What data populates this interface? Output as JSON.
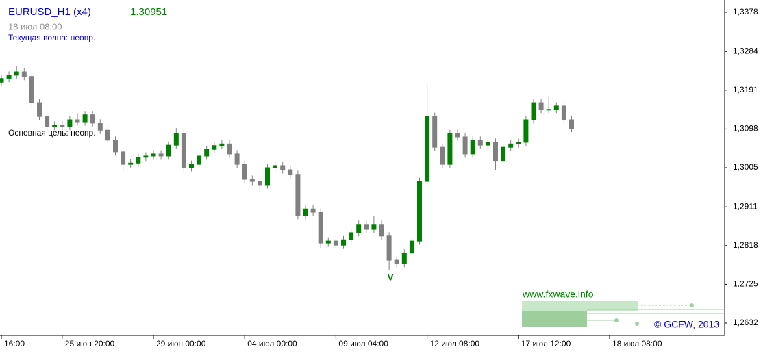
{
  "chart_data": {
    "type": "candlestick",
    "title": "EURUSD_H1 (x4)",
    "last_price": 1.30951,
    "subtitle": "18 июл 08:00",
    "wave_text": "Текущая волна: неопр.",
    "target_text": "Основная цель: неопр.",
    "wave_mark": "V",
    "site": "www.fxwave.info",
    "copyright": "© GCFW, 2013",
    "up_color": "#008000",
    "down_color": "#808080",
    "categories": [
      "16:00",
      null,
      null,
      null,
      null,
      null,
      null,
      null,
      "25 июн 20:00",
      null,
      null,
      null,
      null,
      null,
      null,
      null,
      null,
      null,
      null,
      null,
      "29 июн 00:00",
      null,
      null,
      null,
      null,
      null,
      null,
      null,
      null,
      null,
      null,
      null,
      "04 июл 00:00",
      null,
      null,
      null,
      null,
      null,
      null,
      null,
      null,
      null,
      null,
      null,
      "09 июл 04:00",
      null,
      null,
      null,
      null,
      null,
      null,
      null,
      null,
      null,
      null,
      null,
      "12 июл 08:00",
      null,
      null,
      null,
      null,
      null,
      null,
      null,
      null,
      null,
      null,
      null,
      "17 июл 12:00",
      null,
      null,
      null,
      null,
      null,
      null,
      null,
      null,
      null,
      null,
      null,
      "18 июл 08:00"
    ],
    "open": [
      1.321,
      1.3219,
      1.3227,
      1.3235,
      1.3224,
      1.3161,
      1.3128,
      1.3104,
      1.3107,
      1.3104,
      1.312,
      1.3115,
      1.3132,
      1.3112,
      1.3095,
      1.3071,
      1.3043,
      1.3013,
      1.3016,
      1.303,
      1.3033,
      1.3038,
      1.3033,
      1.3059,
      1.3087,
      1.3005,
      1.3013,
      1.3033,
      1.3049,
      1.3058,
      1.3062,
      1.3038,
      1.3013,
      1.2977,
      1.2972,
      1.2964,
      1.3005,
      1.301,
      1.3,
      1.2989,
      1.289,
      1.2906,
      1.2898,
      1.2824,
      1.2829,
      1.2819,
      1.2832,
      1.2849,
      1.2869,
      1.2857,
      1.2869,
      1.2841,
      1.2783,
      1.2775,
      1.28,
      1.2829,
      1.2972,
      1.3128,
      1.3054,
      1.3013,
      1.3087,
      1.3079,
      1.3038,
      1.3071,
      1.3059,
      1.3066,
      1.3022,
      1.3054,
      1.3062,
      1.3066,
      1.312,
      1.3161,
      1.3145,
      1.3145,
      1.3153,
      1.312,
      null,
      null,
      null,
      null,
      null
    ],
    "high": [
      1.3228,
      1.3236,
      1.325,
      1.3244,
      1.3233,
      1.317,
      1.3137,
      1.3116,
      1.3116,
      1.3129,
      1.3136,
      1.3141,
      1.3141,
      1.3121,
      1.3104,
      1.308,
      1.3052,
      1.3025,
      1.3039,
      1.3042,
      1.3047,
      1.3047,
      1.3068,
      1.31,
      1.3096,
      1.3022,
      1.3042,
      1.3058,
      1.3067,
      1.3071,
      1.3071,
      1.3047,
      1.3022,
      1.2986,
      1.2981,
      1.3014,
      1.3019,
      1.3019,
      1.3009,
      1.2998,
      1.2915,
      1.2915,
      1.2907,
      1.2838,
      1.2838,
      1.2841,
      1.2858,
      1.2878,
      1.2878,
      1.289,
      1.2878,
      1.285,
      1.2792,
      1.2809,
      1.2838,
      1.2981,
      1.3208,
      1.3137,
      1.3063,
      1.3096,
      1.3096,
      1.3088,
      1.308,
      1.308,
      1.3075,
      1.3075,
      1.3063,
      1.3071,
      1.3075,
      1.3129,
      1.317,
      1.317,
      1.3175,
      1.3162,
      1.3162,
      1.3129,
      null,
      null,
      null,
      null,
      null
    ],
    "low": [
      1.3201,
      1.321,
      1.3218,
      1.3215,
      1.3152,
      1.3119,
      1.3095,
      1.3095,
      1.3095,
      1.3095,
      1.3106,
      1.3106,
      1.3103,
      1.3086,
      1.3062,
      1.3034,
      1.2995,
      1.3004,
      1.3007,
      1.3021,
      1.3024,
      1.3024,
      1.3024,
      1.305,
      1.2996,
      1.2996,
      1.3004,
      1.3024,
      1.304,
      1.3049,
      1.3029,
      1.3004,
      1.2968,
      1.2963,
      1.2945,
      1.2955,
      1.2996,
      1.2991,
      1.298,
      1.2881,
      1.2881,
      1.2889,
      1.2812,
      1.2815,
      1.281,
      1.281,
      1.2823,
      1.284,
      1.2848,
      1.2848,
      1.2832,
      1.2759,
      1.2766,
      1.2766,
      1.2791,
      1.282,
      1.2963,
      1.3045,
      1.3004,
      1.3004,
      1.307,
      1.3029,
      1.3029,
      1.305,
      1.305,
      1.3,
      1.3013,
      1.3045,
      1.3053,
      1.3057,
      1.3111,
      1.3136,
      1.3136,
      1.3136,
      1.3111,
      1.309,
      null,
      null,
      null,
      null,
      null
    ],
    "close": [
      1.3219,
      1.3227,
      1.3235,
      1.3224,
      1.3161,
      1.3128,
      1.3104,
      1.3107,
      1.3104,
      1.312,
      1.3115,
      1.3132,
      1.3112,
      1.3095,
      1.3071,
      1.3043,
      1.3013,
      1.3016,
      1.303,
      1.3033,
      1.3038,
      1.3033,
      1.3059,
      1.3087,
      1.3005,
      1.3013,
      1.3033,
      1.3049,
      1.3058,
      1.3062,
      1.3038,
      1.3013,
      1.2977,
      1.2972,
      1.2964,
      1.3005,
      1.301,
      1.3,
      1.2989,
      1.289,
      1.2906,
      1.2898,
      1.2824,
      1.2829,
      1.2819,
      1.2832,
      1.2849,
      1.2869,
      1.2857,
      1.2869,
      1.2841,
      1.2783,
      1.2775,
      1.28,
      1.2829,
      1.2972,
      1.3128,
      1.3054,
      1.3013,
      1.3087,
      1.3079,
      1.3038,
      1.3071,
      1.3059,
      1.3066,
      1.3022,
      1.3054,
      1.3062,
      1.3066,
      1.312,
      1.3161,
      1.3145,
      1.3145,
      1.3153,
      1.312,
      1.3099,
      null,
      null,
      null,
      null,
      null
    ],
    "ylim": [
      1.26024,
      1.34076
    ],
    "yticks": [
      {
        "value": 1.3378,
        "label": "1,3378"
      },
      {
        "value": 1.3284,
        "label": "1,3284"
      },
      {
        "value": 1.3191,
        "label": "1,3191"
      },
      {
        "value": 1.3098,
        "label": "1,3098"
      },
      {
        "value": 1.3005,
        "label": "1,3005"
      },
      {
        "value": 1.2911,
        "label": "1,2911"
      },
      {
        "value": 1.2818,
        "label": "1,2818"
      },
      {
        "value": 1.2725,
        "label": "1,2725"
      },
      {
        "value": 1.2632,
        "label": "1,2632"
      }
    ]
  }
}
